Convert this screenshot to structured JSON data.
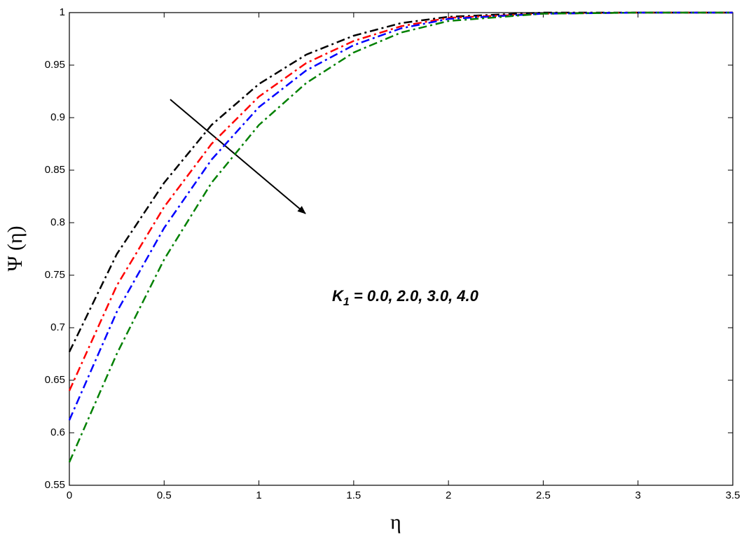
{
  "chart_data": {
    "type": "line",
    "x_label": "η",
    "y_label": "Ψ (η)",
    "annotation": {
      "symbol": "K",
      "subscript": "1",
      "text": " = 0.0, 2.0, 3.0, 4.0"
    },
    "x": [
      0,
      0.25,
      0.5,
      0.75,
      1,
      1.25,
      1.5,
      1.75,
      2,
      2.5,
      3,
      3.5
    ],
    "series": [
      {
        "color": "#000000",
        "values": [
          0.677,
          0.77,
          0.838,
          0.893,
          0.932,
          0.96,
          0.978,
          0.99,
          0.996,
          1.0,
          1.0,
          1.0
        ]
      },
      {
        "color": "#ff0000",
        "values": [
          0.64,
          0.74,
          0.815,
          0.875,
          0.92,
          0.952,
          0.973,
          0.987,
          0.995,
          0.999,
          1.0,
          1.0
        ]
      },
      {
        "color": "#0000ff",
        "values": [
          0.612,
          0.715,
          0.795,
          0.86,
          0.91,
          0.945,
          0.969,
          0.985,
          0.994,
          0.999,
          1.0,
          1.0
        ]
      },
      {
        "color": "#008000",
        "values": [
          0.572,
          0.675,
          0.765,
          0.838,
          0.893,
          0.933,
          0.962,
          0.981,
          0.992,
          0.999,
          1.0,
          1.0
        ]
      }
    ],
    "xlim": [
      0,
      3.5
    ],
    "xticks": [
      0,
      0.5,
      1,
      1.5,
      2,
      2.5,
      3,
      3.5
    ],
    "ylim": [
      0.55,
      1
    ],
    "yticks": [
      0.55,
      0.6,
      0.65,
      0.7,
      0.75,
      0.8,
      0.85,
      0.9,
      0.95,
      1
    ],
    "grid": false
  }
}
